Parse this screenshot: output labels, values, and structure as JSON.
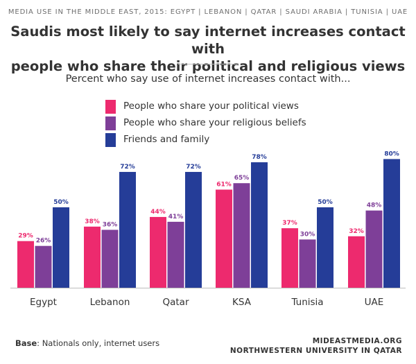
{
  "header": {
    "kicker": "MEDIA USE IN THE MIDDLE EAST, 2015: EGYPT | LEBANON | QATAR | SAUDI ARABIA | TUNISIA | UAE",
    "title_line1": "Saudis most likely to say internet increases contact with",
    "title_line2": "people who share their political and religious views",
    "subtitle": "Percent who say use of internet increases contact with..."
  },
  "chart_data": {
    "type": "bar",
    "categories": [
      "Egypt",
      "Lebanon",
      "Qatar",
      "KSA",
      "Tunisia",
      "UAE"
    ],
    "series": [
      {
        "name": "People who share your political views",
        "color": "#ed2a6e",
        "values": [
          29,
          38,
          44,
          61,
          37,
          32
        ]
      },
      {
        "name": "People who share your religious beliefs",
        "color": "#7e3f98",
        "values": [
          26,
          36,
          41,
          65,
          30,
          48
        ]
      },
      {
        "name": "Friends and family",
        "color": "#253d98",
        "values": [
          50,
          72,
          72,
          78,
          50,
          80
        ]
      }
    ],
    "value_suffix": "%",
    "ylim": [
      0,
      100
    ],
    "grid": false,
    "legend_position": "top"
  },
  "footer": {
    "base_label": "Base",
    "base_text": ": Nationals only, internet users",
    "source_line1": "MIDEASTMEDIA.ORG",
    "source_line2": "NORTHWESTERN UNIVERSITY IN QATAR"
  }
}
